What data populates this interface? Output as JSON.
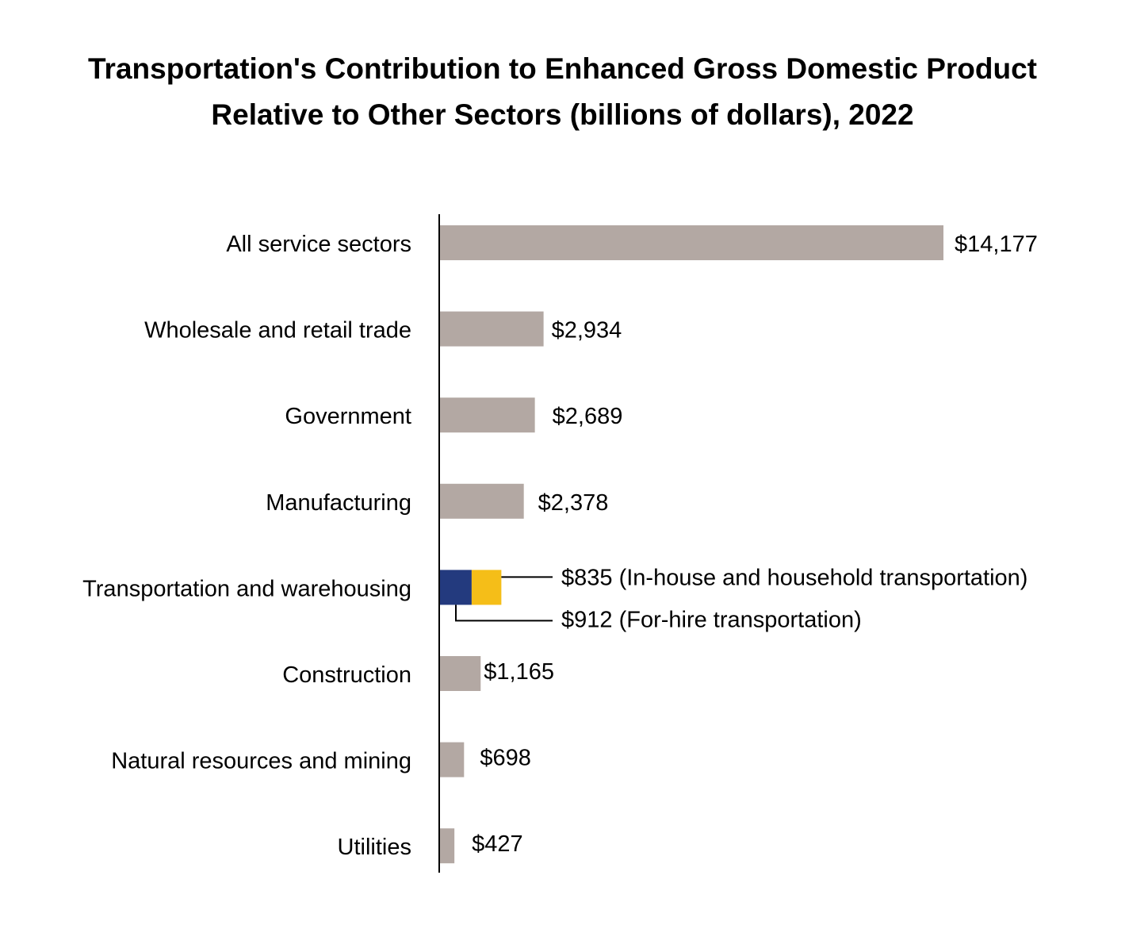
{
  "chart_data": {
    "type": "bar",
    "orientation": "horizontal",
    "title": [
      "Transportation's Contribution to Enhanced Gross Domestic Product",
      "Relative to Other Sectors (billions of dollars), 2022"
    ],
    "categories": [
      "All service sectors",
      "Wholesale and retail trade",
      "Government",
      "Manufacturing",
      "Transportation and warehousing",
      "Construction",
      "Natural resources and mining",
      "Utilities"
    ],
    "values": [
      14177,
      2934,
      2689,
      2378,
      null,
      1165,
      698,
      427
    ],
    "value_labels": [
      "$14,177",
      "$2,934",
      "$2,689",
      "$2,378",
      "",
      "$1,165",
      "$698",
      "$427"
    ],
    "stacked_category": "Transportation and warehousing",
    "stack": [
      {
        "name": "For-hire transportation",
        "value": 912,
        "label": "$912 (For-hire transportation)",
        "color": "#233a7e"
      },
      {
        "name": "In-house and household transportation",
        "value": 835,
        "label": "$835 (In-house and household transportation)",
        "color": "#f5be18"
      }
    ],
    "bar_color": "#b3a8a3",
    "xlim": [
      0,
      14177
    ],
    "grid": false,
    "legend": "none"
  }
}
